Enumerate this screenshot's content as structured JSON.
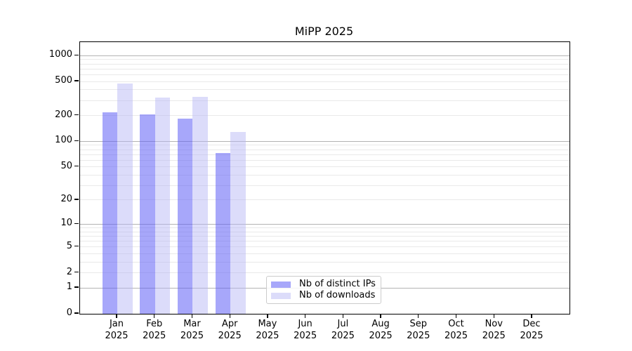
{
  "chart_data": {
    "type": "bar",
    "title": "MiPP 2025",
    "y_scale": "log10(1+x)",
    "grid": true,
    "legend_position": "bottom-center",
    "categories": [
      "Jan",
      "Feb",
      "Mar",
      "Apr",
      "May",
      "Jun",
      "Jul",
      "Aug",
      "Sep",
      "Oct",
      "Nov",
      "Dec"
    ],
    "x_year": "2025",
    "series": [
      {
        "name": "Nb of distinct IPs",
        "color": "rgba(95,95,245,0.55)",
        "values": [
          220,
          208,
          184,
          73,
          null,
          null,
          null,
          null,
          null,
          null,
          null,
          null
        ]
      },
      {
        "name": "Nb of downloads",
        "color": "rgba(180,180,245,0.47)",
        "values": [
          475,
          325,
          331,
          130,
          null,
          null,
          null,
          null,
          null,
          null,
          null,
          null
        ]
      }
    ],
    "yticks": [
      0,
      1,
      2,
      5,
      10,
      20,
      50,
      100,
      200,
      500,
      1000
    ],
    "ylim": [
      0,
      1437
    ],
    "colors": {
      "axis": "#000000",
      "major_grid": "#b3b3b3",
      "minor_grid": "#e9e9e9",
      "background": "#ffffff"
    }
  }
}
